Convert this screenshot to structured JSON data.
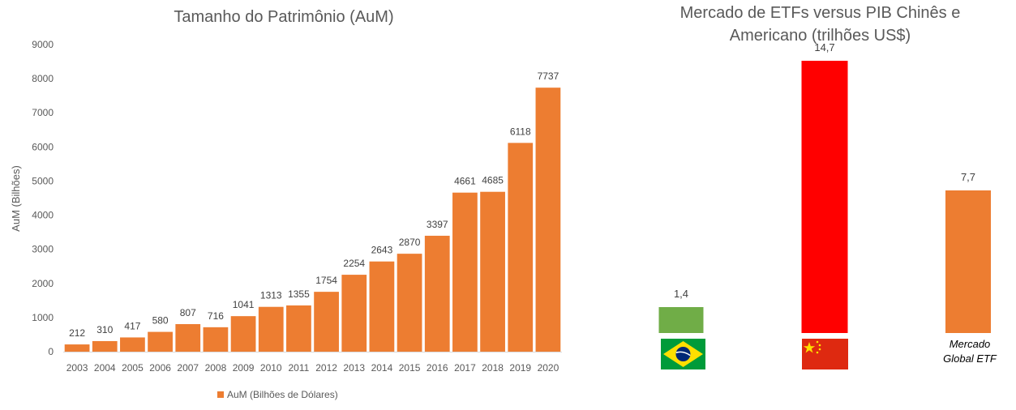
{
  "chart_data": [
    {
      "type": "bar",
      "title": "Tamanho do Patrimônio (AuM)",
      "ylabel": "AuM (Bilhões)",
      "xlabel": "",
      "ylim": [
        0,
        9000
      ],
      "yticks": [
        "0",
        "1000",
        "2000",
        "3000",
        "4000",
        "5000",
        "6000",
        "7000",
        "8000",
        "9000"
      ],
      "categories": [
        "2003",
        "2004",
        "2005",
        "2006",
        "2007",
        "2008",
        "2009",
        "2010",
        "2011",
        "2012",
        "2013",
        "2014",
        "2015",
        "2016",
        "2017",
        "2018",
        "2019",
        "2020"
      ],
      "series": [
        {
          "name": "AuM (Bilhões de Dólares)",
          "values": [
            212,
            310,
            417,
            580,
            807,
            716,
            1041,
            1313,
            1355,
            1754,
            2254,
            2643,
            2870,
            3397,
            4661,
            4685,
            6118,
            7737
          ],
          "labels": [
            "212",
            "310",
            "417",
            "580",
            "807",
            "716",
            "1041",
            "1313",
            "1355",
            "1754",
            "2254",
            "2643",
            "2870",
            "3397",
            "4661",
            "4685",
            "6118",
            "7737"
          ],
          "color": "#ED7D31"
        }
      ],
      "legend": "bottom",
      "grid": false
    },
    {
      "type": "bar",
      "title": "Mercado de ETFs versus PIB Chinês e Americano (trilhões US$)",
      "categories": [
        "Brasil",
        "China",
        "Mercado Global ETF"
      ],
      "values": [
        1.4,
        14.7,
        7.7
      ],
      "labels": [
        "1,4",
        "14,7",
        "7,7"
      ],
      "colors": [
        "#70AD47",
        "#FF0000",
        "#ED7D31"
      ],
      "category_labels": [
        "",
        "",
        "Mercado\nGlobal ETF"
      ],
      "grid": false
    }
  ],
  "left": {
    "title": "Tamanho do Patrimônio (AuM)",
    "legend_label": "AuM (Bilhões de Dólares)"
  },
  "right": {
    "title_line1": "Mercado de ETFs versus PIB Chinês e",
    "title_line2": "Americano (trilhões US$)",
    "etf_label_line1": "Mercado",
    "etf_label_line2": "Global ETF"
  },
  "icons": {
    "brazil": "brazil-flag-icon",
    "china": "china-flag-icon"
  }
}
